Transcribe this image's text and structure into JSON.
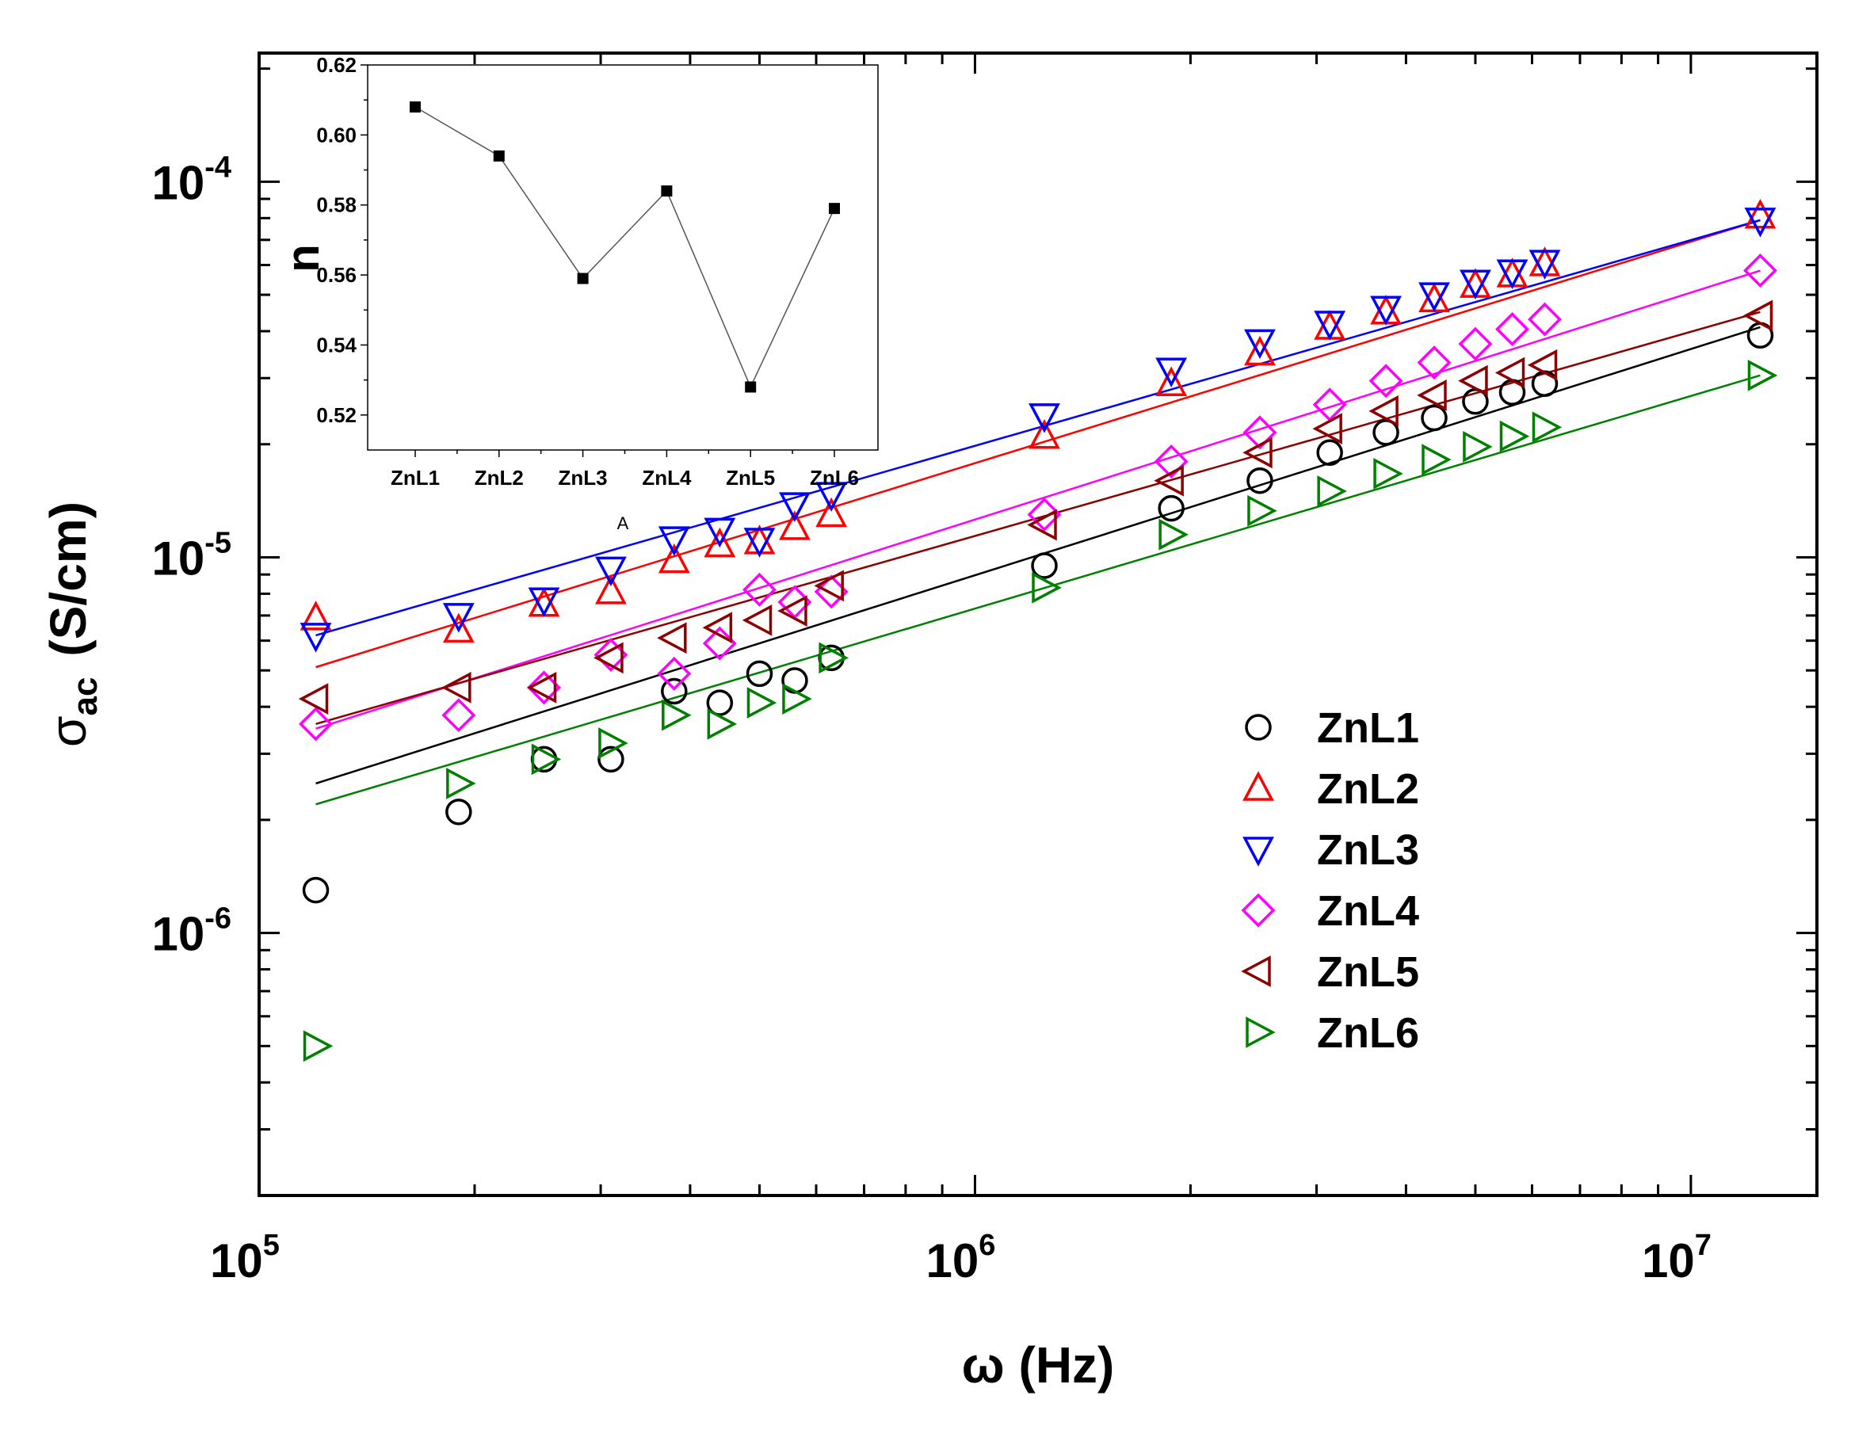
{
  "chart_data": [
    {
      "type": "scatter",
      "x_scale": "log",
      "y_scale": "log",
      "xlabel": "ω  (Hz)",
      "ylabel_symbol": "σ",
      "ylabel_subscript": "ac",
      "ylabel_unit": "(S/cm)",
      "xlim": [
        100000,
        15000000
      ],
      "ylim": [
        2e-07,
        0.00022
      ],
      "x_tick_labels": [
        {
          "value": 100000,
          "base": "10",
          "exp": "5"
        },
        {
          "value": 1000000,
          "base": "10",
          "exp": "6"
        },
        {
          "value": 10000000,
          "base": "10",
          "exp": "7"
        }
      ],
      "y_tick_labels": [
        {
          "value": 1e-06,
          "base": "10",
          "exp": "-6"
        },
        {
          "value": 1e-05,
          "base": "10",
          "exp": "-5"
        },
        {
          "value": 0.0001,
          "base": "10",
          "exp": "-4"
        }
      ],
      "legend_position": "right-middle",
      "series": [
        {
          "name": "ZnL1",
          "marker": "circle",
          "color": "#000000",
          "x": [
            120000,
            190000,
            250000,
            310000,
            380000,
            440000,
            500000,
            560000,
            630000,
            1250000,
            1880000,
            2500000,
            3130000,
            3750000,
            4380000,
            5000000,
            5630000,
            6250000,
            12500000
          ],
          "y": [
            1.3e-06,
            2.1e-06,
            2.9e-06,
            2.9e-06,
            4.4e-06,
            4.1e-06,
            4.9e-06,
            4.7e-06,
            5.4e-06,
            9.5e-06,
            1.35e-05,
            1.6e-05,
            1.9e-05,
            2.15e-05,
            2.35e-05,
            2.6e-05,
            2.75e-05,
            2.9e-05,
            3.9e-05
          ],
          "fit": {
            "x": [
              120000,
              12500000
            ],
            "y": [
              2.5e-06,
              4.1e-05
            ]
          }
        },
        {
          "name": "ZnL2",
          "marker": "triangle-up",
          "color": "#ff0000",
          "x": [
            120000,
            190000,
            250000,
            310000,
            380000,
            440000,
            500000,
            560000,
            630000,
            1250000,
            1880000,
            2500000,
            3130000,
            3750000,
            4380000,
            5000000,
            5630000,
            6250000,
            12500000
          ],
          "y": [
            6.9e-06,
            6.4e-06,
            7.5e-06,
            8.1e-06,
            9.8e-06,
            1.08e-05,
            1.1e-05,
            1.2e-05,
            1.3e-05,
            2.1e-05,
            2.9e-05,
            3.5e-05,
            4.1e-05,
            4.5e-05,
            4.85e-05,
            5.3e-05,
            5.65e-05,
            6.05e-05,
            8.1e-05
          ],
          "fit": {
            "x": [
              120000,
              12500000
            ],
            "y": [
              5.1e-06,
              7.9e-05
            ]
          }
        },
        {
          "name": "ZnL3",
          "marker": "triangle-down",
          "color": "#0000ff",
          "x": [
            120000,
            190000,
            250000,
            310000,
            380000,
            440000,
            500000,
            560000,
            630000,
            1250000,
            1880000,
            2500000,
            3130000,
            3750000,
            4380000,
            5000000,
            5630000,
            6250000,
            12500000
          ],
          "y": [
            6.2e-06,
            7e-06,
            7.7e-06,
            9.3e-06,
            1.12e-05,
            1.18e-05,
            1.11e-05,
            1.38e-05,
            1.47e-05,
            2.38e-05,
            3.15e-05,
            3.75e-05,
            4.2e-05,
            4.6e-05,
            5e-05,
            5.4e-05,
            5.75e-05,
            6.1e-05,
            7.9e-05
          ],
          "fit": {
            "x": [
              120000,
              12500000
            ],
            "y": [
              6.2e-06,
              7.9e-05
            ]
          }
        },
        {
          "name": "ZnL4",
          "marker": "diamond",
          "color": "#ff00ff",
          "x": [
            120000,
            190000,
            250000,
            310000,
            380000,
            440000,
            500000,
            560000,
            630000,
            1250000,
            1880000,
            2500000,
            3130000,
            3750000,
            4380000,
            5000000,
            5630000,
            6250000,
            12500000
          ],
          "y": [
            3.6e-06,
            3.8e-06,
            4.5e-06,
            5.5e-06,
            4.9e-06,
            5.9e-06,
            8.2e-06,
            7.6e-06,
            8.1e-06,
            1.3e-05,
            1.8e-05,
            2.15e-05,
            2.55e-05,
            2.95e-05,
            3.3e-05,
            3.7e-05,
            4.05e-05,
            4.3e-05,
            5.8e-05
          ],
          "fit": {
            "x": [
              120000,
              12500000
            ],
            "y": [
              3.5e-06,
              5.8e-05
            ]
          }
        },
        {
          "name": "ZnL5",
          "marker": "triangle-left",
          "color": "#8b0000",
          "x": [
            120000,
            190000,
            250000,
            310000,
            380000,
            440000,
            500000,
            560000,
            630000,
            1250000,
            1880000,
            2500000,
            3130000,
            3750000,
            4380000,
            5000000,
            5630000,
            6250000,
            12500000
          ],
          "y": [
            4.2e-06,
            4.5e-06,
            4.5e-06,
            5.4e-06,
            6.1e-06,
            6.5e-06,
            6.8e-06,
            7.2e-06,
            8.4e-06,
            1.22e-05,
            1.6e-05,
            1.9e-05,
            2.2e-05,
            2.45e-05,
            2.7e-05,
            2.95e-05,
            3.1e-05,
            3.25e-05,
            4.4e-05
          ],
          "fit": {
            "x": [
              120000,
              12500000
            ],
            "y": [
              3.6e-06,
              4.5e-05
            ]
          }
        },
        {
          "name": "ZnL6",
          "marker": "triangle-right",
          "color": "#008000",
          "x": [
            120000,
            190000,
            250000,
            310000,
            380000,
            440000,
            500000,
            560000,
            630000,
            1250000,
            1880000,
            2500000,
            3130000,
            3750000,
            4380000,
            5000000,
            5630000,
            6250000,
            12500000
          ],
          "y": [
            5e-07,
            2.5e-06,
            2.9e-06,
            3.2e-06,
            3.8e-06,
            3.6e-06,
            4.1e-06,
            4.2e-06,
            5.4e-06,
            8.3e-06,
            1.15e-05,
            1.33e-05,
            1.5e-05,
            1.67e-05,
            1.82e-05,
            1.97e-05,
            2.1e-05,
            2.22e-05,
            3.05e-05
          ],
          "fit": {
            "x": [
              120000,
              12500000
            ],
            "y": [
              2.2e-06,
              3.05e-05
            ]
          }
        }
      ]
    },
    {
      "type": "line",
      "placement": "inset-top-left",
      "categories": [
        "ZnL1",
        "ZnL2",
        "ZnL3",
        "ZnL4",
        "ZnL5",
        "ZnL6"
      ],
      "values": [
        0.608,
        0.594,
        0.559,
        0.584,
        0.528,
        0.579
      ],
      "ylabel": "n",
      "xlabel": "A",
      "ylim": [
        0.51,
        0.62
      ],
      "y_ticks": [
        0.52,
        0.54,
        0.56,
        0.58,
        0.6,
        0.62
      ],
      "y_tick_labels": [
        "0.52",
        "0.54",
        "0.56",
        "0.58",
        "0.60",
        "0.62"
      ],
      "marker": "square",
      "color": "#000000"
    }
  ]
}
